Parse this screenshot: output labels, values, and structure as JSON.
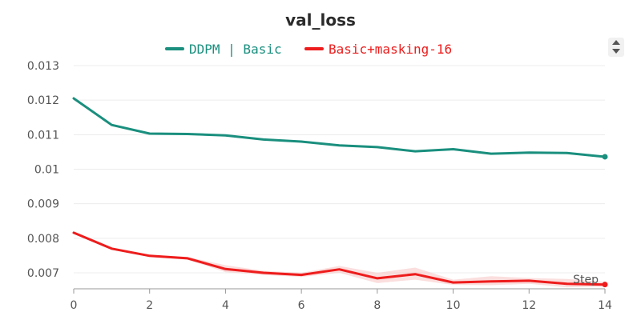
{
  "chart_data": {
    "type": "line",
    "title": "val_loss",
    "xlabel": "Step",
    "ylabel": "",
    "xlim": [
      0,
      14
    ],
    "ylim": [
      0.0065,
      0.013
    ],
    "x_ticks": [
      "0",
      "2",
      "4",
      "6",
      "8",
      "10",
      "12",
      "14"
    ],
    "y_ticks": [
      "0.007",
      "0.008",
      "0.009",
      "0.01",
      "0.011",
      "0.012",
      "0.013"
    ],
    "grid": true,
    "legend_position": "top-center",
    "x": [
      0,
      1,
      2,
      3,
      4,
      5,
      6,
      7,
      8,
      9,
      10,
      11,
      12,
      13,
      14
    ],
    "series": [
      {
        "name": "DDPM | Basic",
        "color": "#1a8f7e",
        "values": [
          0.01205,
          0.01128,
          0.01103,
          0.01102,
          0.01098,
          0.01086,
          0.0108,
          0.01069,
          0.01064,
          0.01052,
          0.01058,
          0.01045,
          0.01048,
          0.01047,
          0.01036
        ]
      },
      {
        "name": "Basic+masking-16",
        "color": "#ee1c1c",
        "band_color": "#f8c8c8",
        "values": [
          0.00816,
          0.0077,
          0.00749,
          0.00742,
          0.00711,
          0.007,
          0.00694,
          0.0071,
          0.00684,
          0.00696,
          0.00672,
          0.00675,
          0.00677,
          0.00668,
          0.00666
        ],
        "band_upper": [
          0.00818,
          0.00773,
          0.00752,
          0.00746,
          0.00722,
          0.00706,
          0.007,
          0.0072,
          0.007,
          0.00715,
          0.0068,
          0.0069,
          0.00685,
          0.00682,
          0.00674
        ],
        "band_lower": [
          0.00814,
          0.00767,
          0.00746,
          0.00738,
          0.00702,
          0.00694,
          0.00688,
          0.007,
          0.0067,
          0.0068,
          0.00665,
          0.00664,
          0.00668,
          0.00658,
          0.0066
        ]
      }
    ]
  }
}
